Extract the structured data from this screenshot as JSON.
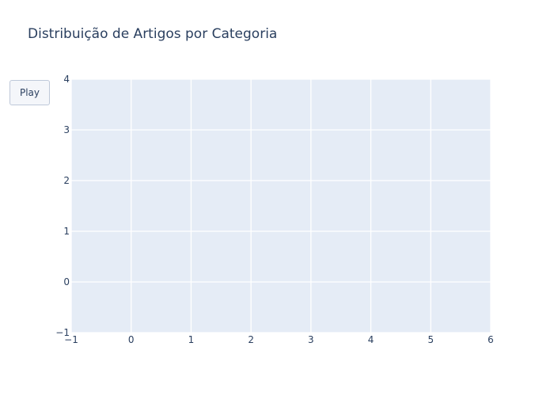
{
  "chart_data": {
    "type": "scatter",
    "title": "Distribuição de Artigos por Categoria",
    "xlabel": "",
    "ylabel": "",
    "xlim": [
      -1,
      6
    ],
    "ylim": [
      -1,
      4
    ],
    "x_ticks": [
      -1,
      0,
      1,
      2,
      3,
      4,
      5,
      6
    ],
    "y_ticks": [
      -1,
      0,
      1,
      2,
      3,
      4
    ],
    "x_tick_labels": [
      "−1",
      "0",
      "1",
      "2",
      "3",
      "4",
      "5",
      "6"
    ],
    "y_tick_labels": [
      "−1",
      "0",
      "1",
      "2",
      "3",
      "4"
    ],
    "grid": true,
    "series": [],
    "plot_background": "#e5ecf6",
    "grid_color": "#ffffff",
    "text_color": "#2a3f5f"
  },
  "controls": {
    "play_label": "Play"
  }
}
